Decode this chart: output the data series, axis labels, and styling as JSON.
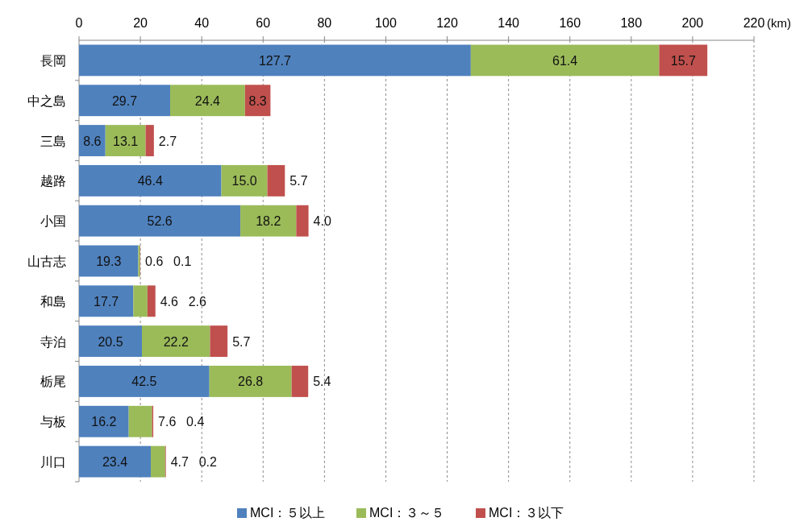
{
  "chart_data": {
    "type": "bar",
    "orientation": "horizontal",
    "stacked": true,
    "xlabel": "(km)",
    "categories": [
      "長岡",
      "中之島",
      "三島",
      "越路",
      "小国",
      "山古志",
      "和島",
      "寺泊",
      "栃尾",
      "与板",
      "川口"
    ],
    "series": [
      {
        "name": "MCI：５以上",
        "color": "#4f81bd",
        "values": [
          127.7,
          29.7,
          8.6,
          46.4,
          52.6,
          19.3,
          17.7,
          20.5,
          42.5,
          16.2,
          23.4
        ],
        "value_labels": [
          "127.7",
          "29.7",
          "8.6",
          "46.4",
          "52.6",
          "19.3",
          "17.7",
          "20.5",
          "42.5",
          "16.2",
          "23.4"
        ]
      },
      {
        "name": "MCI：３～５",
        "color": "#9bbb59",
        "values": [
          61.4,
          24.4,
          13.1,
          15.0,
          18.2,
          0.6,
          4.6,
          22.2,
          26.8,
          7.6,
          4.7
        ],
        "value_labels": [
          "61.4",
          "24.4",
          "13.1",
          "15.0",
          "18.2",
          "0.6",
          "4.6",
          "22.2",
          "26.8",
          "7.6",
          "4.7"
        ]
      },
      {
        "name": "MCI：３以下",
        "color": "#c0504d",
        "values": [
          15.7,
          8.3,
          2.7,
          5.7,
          4.0,
          0.1,
          2.6,
          5.7,
          5.4,
          0.4,
          0.2
        ],
        "value_labels": [
          "15.7",
          "8.3",
          "2.7",
          "5.7",
          "4.0",
          "0.1",
          "2.6",
          "5.7",
          "5.4",
          "0.4",
          "0.2"
        ]
      }
    ],
    "xlim": [
      0,
      220
    ],
    "xticks": [
      0,
      20,
      40,
      60,
      80,
      100,
      120,
      140,
      160,
      180,
      200,
      220
    ],
    "grid": "x",
    "legend": "bottom"
  }
}
